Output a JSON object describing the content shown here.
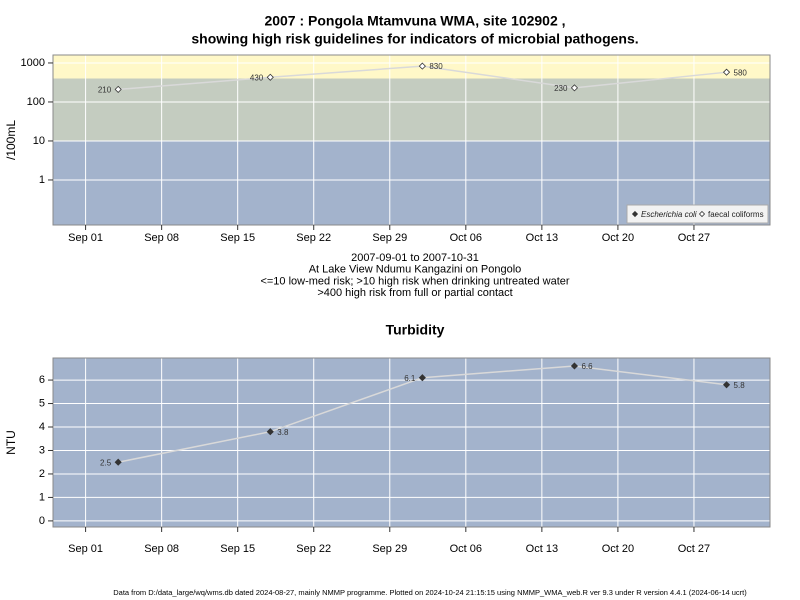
{
  "footer": "Data from D:/data_large/wq/wms.db dated 2024-08-27, mainly NMMP programme. Plotted on 2024-10-24 21:15:15 using NMMP_WMA_web.R ver 9.3 under R version 4.4.1 (2024-06-14 ucrt)",
  "chart_data": [
    {
      "type": "line",
      "title": [
        "2007 : Pongola Mtamvuna WMA, site 102902 ,",
        "showing high risk guidelines for indicators of microbial pathogens."
      ],
      "ylabel": "/100mL",
      "caption": [
        "2007-09-01 to 2007-10-31",
        "At Lake View Ndumu Kangazini on Pongolo",
        "<=10 low-med risk; >10 high risk when drinking untreated water",
        ">400 high risk from full or partial contact"
      ],
      "x": [
        "2007-09-04",
        "2007-09-18",
        "2007-10-02",
        "2007-10-16",
        "2007-10-30"
      ],
      "series": [
        {
          "name": "Escherichia coli",
          "marker": "filled",
          "color": "#333333",
          "line_color": "#d9d9d9",
          "values": [
            null,
            null,
            null,
            null,
            null
          ]
        },
        {
          "name": "faecal coliforms",
          "marker": "open",
          "color": "#333333",
          "line_color": "#d9d9d9",
          "values": [
            210,
            430,
            830,
            230,
            580
          ]
        }
      ],
      "xlim": [
        "2007-08-29",
        "2007-11-03"
      ],
      "xticks": [
        {
          "value": "2007-09-01",
          "label": "Sep 01"
        },
        {
          "value": "2007-09-08",
          "label": "Sep 08"
        },
        {
          "value": "2007-09-15",
          "label": "Sep 15"
        },
        {
          "value": "2007-09-22",
          "label": "Sep 22"
        },
        {
          "value": "2007-09-29",
          "label": "Sep 29"
        },
        {
          "value": "2007-10-06",
          "label": "Oct 06"
        },
        {
          "value": "2007-10-13",
          "label": "Oct 13"
        },
        {
          "value": "2007-10-20",
          "label": "Oct 20"
        },
        {
          "value": "2007-10-27",
          "label": "Oct 27"
        }
      ],
      "ylim": [
        0.07,
        1600
      ],
      "yticks": [
        1,
        10,
        100,
        1000
      ],
      "log_y": true,
      "grid": true,
      "bands": [
        {
          "max": 10,
          "color": "#a3b3cc"
        },
        {
          "max": 400,
          "color": "#c4ccc0"
        },
        {
          "color": "#fff8c8"
        }
      ],
      "legend": "bottom right"
    },
    {
      "type": "line",
      "title": [
        "Turbidity"
      ],
      "ylabel": "NTU",
      "x": [
        "2007-09-04",
        "2007-09-18",
        "2007-10-02",
        "2007-10-16",
        "2007-10-30"
      ],
      "values": [
        2.5,
        3.8,
        6.1,
        6.6,
        5.8
      ],
      "marker": "filled",
      "color": "#333333",
      "line_color": "#d9d9d9",
      "background": "#a3b3cc",
      "xlim": [
        "2007-08-29",
        "2007-11-03"
      ],
      "xticks": [
        {
          "value": "2007-09-01",
          "label": "Sep 01"
        },
        {
          "value": "2007-09-08",
          "label": "Sep 08"
        },
        {
          "value": "2007-09-15",
          "label": "Sep 15"
        },
        {
          "value": "2007-09-22",
          "label": "Sep 22"
        },
        {
          "value": "2007-09-29",
          "label": "Sep 29"
        },
        {
          "value": "2007-10-06",
          "label": "Oct 06"
        },
        {
          "value": "2007-10-13",
          "label": "Oct 13"
        },
        {
          "value": "2007-10-20",
          "label": "Oct 20"
        },
        {
          "value": "2007-10-27",
          "label": "Oct 27"
        }
      ],
      "ylim": [
        -0.26,
        6.94
      ],
      "yticks": [
        0,
        1,
        2,
        3,
        4,
        5,
        6
      ],
      "log_y": false,
      "grid": true
    }
  ]
}
